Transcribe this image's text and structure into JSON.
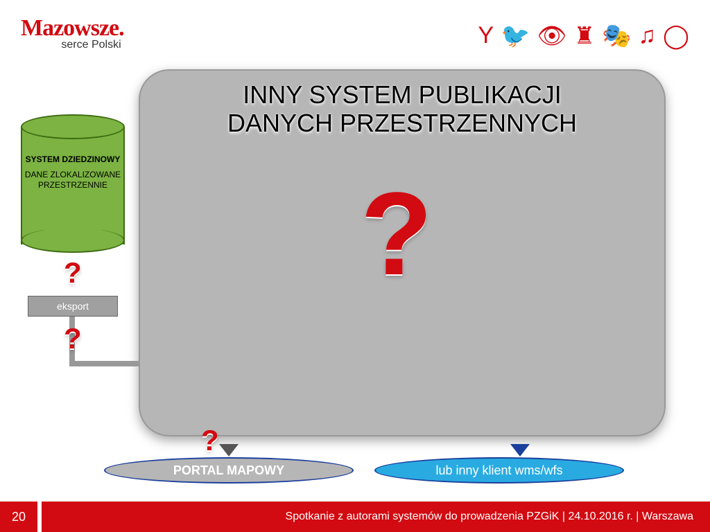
{
  "header": {
    "logo": "Mazowsze.",
    "logo_sub": "serce Polski",
    "icons": [
      "Y",
      "🐦",
      "👁",
      "♜",
      "🎭",
      "♫",
      "◯"
    ]
  },
  "diagram": {
    "main_title_line1": "INNY SYSTEM PUBLIKACJI",
    "main_title_line2": "DANYCH PRZESTRZENNYCH",
    "big_question": "?",
    "small_questions": [
      "?",
      "?",
      "?"
    ],
    "cylinder": {
      "title": "SYSTEM DZIEDZINOWY",
      "sub": "DANE ZLOKALIZOWANE PRZESTRZENNIE"
    },
    "eksport_label": "eksport",
    "ellipse1": "PORTAL MAPOWY",
    "ellipse2": "lub inny klient wms/wfs",
    "colors": {
      "brand_red": "#d20a11",
      "box_gray": "#b6b6b6",
      "cyl_green": "#7cb342",
      "ellipse_blue": "#29abe2",
      "border_navy": "#1b3f9c"
    }
  },
  "footer": {
    "page": "20",
    "text": "Spotkanie z autorami systemów do prowadzenia PZGiK | 24.10.2016 r. | Warszawa"
  }
}
